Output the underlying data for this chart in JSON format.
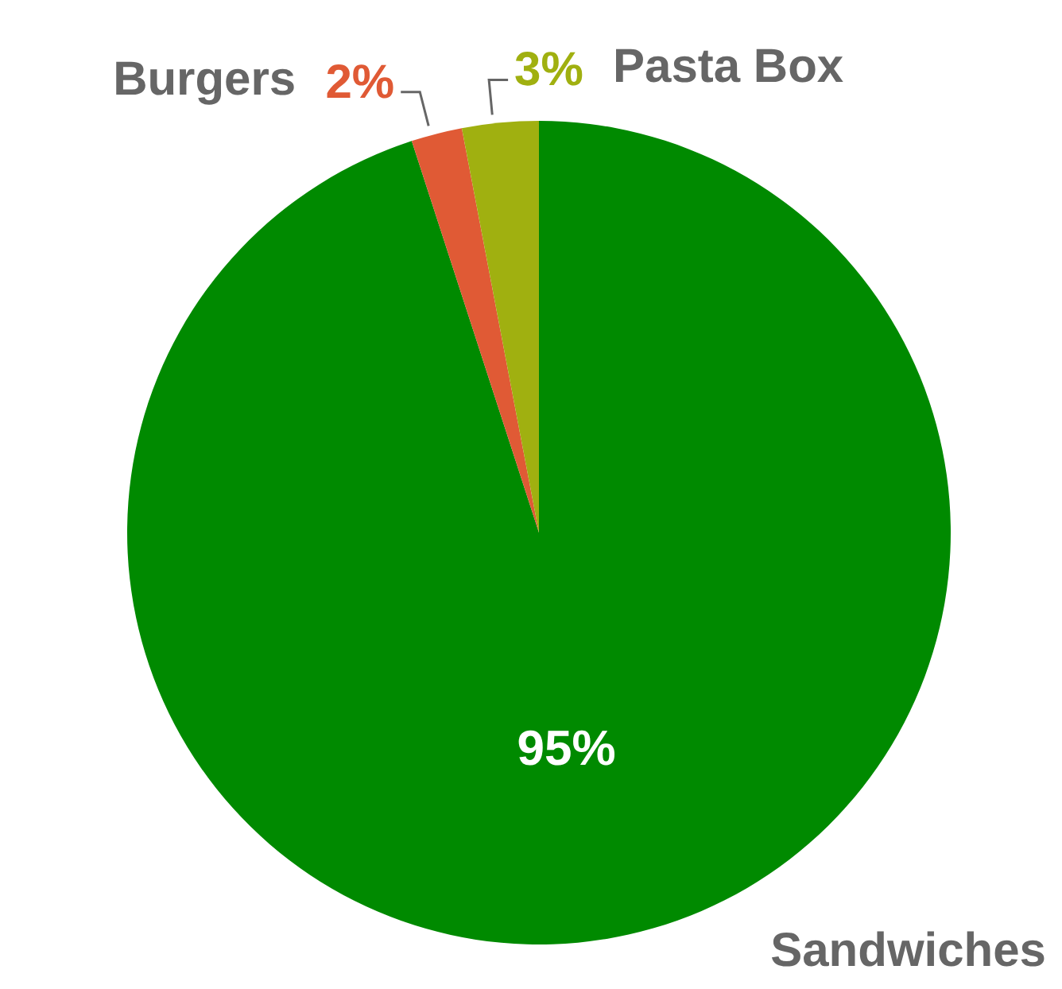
{
  "chart_data": {
    "type": "pie",
    "categories": [
      "Sandwiches",
      "Burgers",
      "Pasta Box"
    ],
    "values": [
      95,
      2,
      3
    ],
    "colors": [
      "#008a00",
      "#e05a35",
      "#a0b010"
    ],
    "value_labels": [
      "95%",
      "2%",
      "3%"
    ]
  }
}
